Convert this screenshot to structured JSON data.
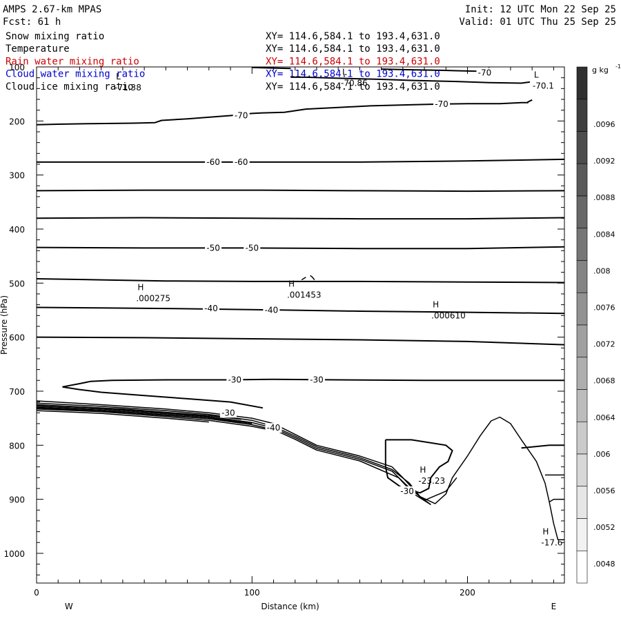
{
  "header": {
    "title": "AMPS 2.67-km MPAS",
    "fcst": "Fcst:   61 h",
    "init": "Init: 12 UTC Mon 22 Sep 25",
    "valid": "Valid: 01 UTC Thu 25 Sep 25"
  },
  "fields": [
    {
      "name": "Snow mixing ratio",
      "xy": "XY= 114.6,584.1 to 193.4,631.0",
      "color": "#000000"
    },
    {
      "name": "Temperature",
      "xy": "XY= 114.6,584.1 to 193.4,631.0",
      "color": "#000000"
    },
    {
      "name": "Rain water mixing ratio",
      "xy": "XY= 114.6,584.1 to 193.4,631.0",
      "color": "#cc0000"
    },
    {
      "name": "Cloud water mixing ratio",
      "xy": "XY= 114.6,584.1 to 193.4,631.0",
      "color": "#0000cc"
    },
    {
      "name": "Cloud ice mixing ratio",
      "xy": "XY= 114.6,584.1 to 193.4,631.0",
      "color": "#000000"
    }
  ],
  "chart_data": {
    "type": "contour",
    "xlabel": "Distance (km)",
    "ylabel": "Pressure (hPa)",
    "xlim": [
      0,
      245
    ],
    "ylim": [
      1055,
      100
    ],
    "x_ticks": [
      0,
      100,
      200
    ],
    "y_ticks": [
      200,
      300,
      400,
      500,
      600,
      700,
      800,
      900,
      1000
    ],
    "y_top_tick": "100",
    "x_left_label": "W",
    "x_right_label": "E",
    "colorbar": {
      "unit": "g kg",
      "unit_exp": "-1",
      "ticks": [
        ".0096",
        ".0092",
        ".0088",
        ".0084",
        ".008",
        ".0076",
        ".0072",
        ".0068",
        ".0064",
        ".006",
        ".0056",
        ".0052",
        ".0048"
      ],
      "colors": [
        "#303030",
        "#3e3e3e",
        "#4c4c4c",
        "#5a5a5a",
        "#686868",
        "#767676",
        "#848484",
        "#929292",
        "#a0a0a0",
        "#aeaeae",
        "#bcbcbc",
        "#cacaca",
        "#d8d8d8",
        "#e6e6e6",
        "#f2f2f2",
        "#ffffff"
      ]
    },
    "temperature_contours": [
      {
        "level": -70,
        "points": [
          [
            0,
            207
          ],
          [
            10,
            206
          ],
          [
            25,
            205
          ],
          [
            45,
            204
          ],
          [
            55,
            203
          ],
          [
            58,
            199
          ],
          [
            70,
            196
          ],
          [
            90,
            190
          ],
          [
            100,
            186
          ],
          [
            105,
            185
          ],
          [
            115,
            184
          ],
          [
            125,
            178
          ],
          [
            140,
            175
          ],
          [
            155,
            172
          ],
          [
            175,
            170
          ],
          [
            185,
            169
          ],
          [
            200,
            168
          ],
          [
            215,
            168
          ],
          [
            225,
            166
          ],
          [
            228,
            166
          ],
          [
            228,
            165
          ],
          [
            230,
            161
          ]
        ]
      },
      {
        "level": -70,
        "points": [
          [
            118,
            119
          ],
          [
            125,
            119
          ],
          [
            140,
            121
          ],
          [
            160,
            123
          ],
          [
            175,
            125
          ],
          [
            195,
            127
          ],
          [
            210,
            129
          ],
          [
            225,
            130
          ],
          [
            229,
            128
          ]
        ]
      },
      {
        "level": -70,
        "points": [
          [
            160,
            104
          ],
          [
            170,
            105
          ],
          [
            185,
            106
          ],
          [
            195,
            107
          ],
          [
            205,
            108
          ]
        ]
      },
      {
        "level": -70,
        "points": [
          [
            100,
            101
          ],
          [
            110,
            102
          ],
          [
            118,
            103
          ]
        ]
      },
      {
        "level": -60,
        "points": [
          [
            0,
            276
          ],
          [
            50,
            276
          ],
          [
            100,
            276
          ],
          [
            150,
            276
          ],
          [
            200,
            274
          ],
          [
            245,
            271
          ]
        ]
      },
      {
        "level": -60,
        "points": [
          [
            0,
            329
          ],
          [
            50,
            328
          ],
          [
            100,
            328
          ],
          [
            150,
            329
          ],
          [
            200,
            330
          ],
          [
            245,
            329
          ]
        ]
      },
      {
        "level": -60,
        "points": [
          [
            0,
            380
          ],
          [
            50,
            379
          ],
          [
            100,
            380
          ],
          [
            150,
            381
          ],
          [
            200,
            381
          ],
          [
            245,
            379
          ]
        ]
      },
      {
        "level": -50,
        "points": [
          [
            0,
            434
          ],
          [
            50,
            435
          ],
          [
            100,
            435
          ],
          [
            150,
            436
          ],
          [
            200,
            436
          ],
          [
            245,
            433
          ]
        ]
      },
      {
        "level": -50,
        "points": [
          [
            0,
            492
          ],
          [
            30,
            494
          ],
          [
            60,
            496
          ],
          [
            100,
            497
          ],
          [
            150,
            497
          ],
          [
            200,
            498
          ],
          [
            245,
            499
          ]
        ]
      },
      {
        "level": -40,
        "points": [
          [
            0,
            545
          ],
          [
            30,
            546
          ],
          [
            60,
            547
          ],
          [
            100,
            549
          ],
          [
            150,
            552
          ],
          [
            200,
            554
          ],
          [
            245,
            556
          ]
        ]
      },
      {
        "level": -40,
        "points": [
          [
            0,
            600
          ],
          [
            50,
            601
          ],
          [
            100,
            603
          ],
          [
            150,
            605
          ],
          [
            200,
            608
          ],
          [
            245,
            614
          ]
        ]
      },
      {
        "level": -30,
        "points": [
          [
            12,
            692
          ],
          [
            20,
            686
          ],
          [
            25,
            682
          ],
          [
            35,
            680
          ],
          [
            60,
            679
          ],
          [
            90,
            679
          ],
          [
            110,
            678
          ],
          [
            140,
            679
          ],
          [
            180,
            680
          ],
          [
            245,
            680
          ]
        ]
      },
      {
        "level": -30,
        "points": [
          [
            12,
            692
          ],
          [
            20,
            697
          ],
          [
            30,
            702
          ],
          [
            50,
            708
          ],
          [
            70,
            714
          ],
          [
            90,
            720
          ],
          [
            105,
            731
          ]
        ]
      },
      {
        "level": -30,
        "points": [
          [
            225,
            805
          ],
          [
            238,
            800
          ],
          [
            245,
            800
          ]
        ]
      }
    ],
    "small_contours": [
      [
        [
          123,
          494
        ],
        [
          125,
          489
        ]
      ],
      [
        [
          127,
          486
        ],
        [
          128,
          489
        ],
        [
          129,
          494
        ]
      ]
    ],
    "terrain_lines": [
      [
        [
          0,
          718
        ],
        [
          30,
          725
        ],
        [
          60,
          733
        ],
        [
          80,
          740
        ],
        [
          100,
          750
        ],
        [
          110,
          760
        ],
        [
          120,
          780
        ],
        [
          130,
          800
        ],
        [
          150,
          820
        ],
        [
          165,
          840
        ],
        [
          170,
          860
        ],
        [
          178,
          895
        ],
        [
          185,
          908
        ],
        [
          190,
          890
        ],
        [
          193,
          860
        ],
        [
          200,
          820
        ],
        [
          206,
          782
        ],
        [
          211,
          755
        ],
        [
          215,
          748
        ],
        [
          220,
          760
        ],
        [
          225,
          790
        ],
        [
          232,
          830
        ],
        [
          236,
          870
        ],
        [
          238,
          905
        ],
        [
          240,
          945
        ],
        [
          242,
          975
        ],
        [
          245,
          975
        ]
      ],
      [
        [
          0,
          722
        ],
        [
          30,
          728
        ],
        [
          60,
          736
        ],
        [
          80,
          743
        ],
        [
          100,
          754
        ],
        [
          110,
          765
        ],
        [
          120,
          783
        ],
        [
          130,
          803
        ],
        [
          150,
          823
        ],
        [
          165,
          845
        ],
        [
          173,
          870
        ],
        [
          178,
          895
        ],
        [
          183,
          910
        ]
      ],
      [
        [
          0,
          726
        ],
        [
          30,
          731
        ],
        [
          60,
          740
        ],
        [
          80,
          747
        ],
        [
          100,
          758
        ],
        [
          110,
          768
        ],
        [
          120,
          786
        ],
        [
          130,
          806
        ],
        [
          150,
          826
        ],
        [
          165,
          848
        ],
        [
          172,
          875
        ],
        [
          180,
          902
        ],
        [
          190,
          885
        ],
        [
          195,
          860
        ]
      ],
      [
        [
          0,
          730
        ],
        [
          30,
          735
        ],
        [
          60,
          744
        ],
        [
          80,
          751
        ],
        [
          100,
          762
        ],
        [
          110,
          771
        ],
        [
          120,
          789
        ],
        [
          130,
          809
        ],
        [
          150,
          829
        ],
        [
          168,
          860
        ],
        [
          175,
          890
        ],
        [
          183,
          910
        ]
      ],
      [
        [
          0,
          733
        ],
        [
          30,
          738
        ],
        [
          60,
          747
        ],
        [
          80,
          754
        ],
        [
          100,
          765
        ],
        [
          110,
          773
        ]
      ],
      [
        [
          0,
          736
        ],
        [
          30,
          741
        ],
        [
          60,
          750
        ],
        [
          80,
          757
        ]
      ],
      [
        [
          0,
          728
        ],
        [
          30,
          733
        ],
        [
          60,
          742
        ],
        [
          80,
          749
        ],
        [
          100,
          760
        ]
      ],
      [
        [
          0,
          725
        ],
        [
          40,
          733
        ],
        [
          80,
          745
        ],
        [
          95,
          752
        ]
      ],
      [
        [
          0,
          731
        ],
        [
          40,
          739
        ],
        [
          80,
          751
        ],
        [
          95,
          758
        ]
      ],
      [
        [
          236,
          855
        ],
        [
          240,
          855
        ],
        [
          245,
          855
        ]
      ],
      [
        [
          238,
          905
        ],
        [
          240,
          900
        ],
        [
          245,
          900
        ]
      ]
    ],
    "closed_contour": [
      [
        162,
        790
      ],
      [
        174,
        790
      ],
      [
        190,
        800
      ],
      [
        193,
        810
      ],
      [
        191,
        830
      ],
      [
        187,
        840
      ],
      [
        183,
        860
      ],
      [
        182,
        880
      ],
      [
        178,
        888
      ],
      [
        170,
        880
      ],
      [
        163,
        860
      ],
      [
        162,
        840
      ],
      [
        162,
        815
      ],
      [
        162,
        800
      ],
      [
        162,
        790
      ]
    ],
    "annotations": [
      {
        "label": "H",
        "value": ".000275",
        "x": 52,
        "y": 518
      },
      {
        "label": "H",
        "value": ".001453",
        "x": 122,
        "y": 512
      },
      {
        "label": "H",
        "value": ".000610",
        "x": 189,
        "y": 550
      },
      {
        "label": "H",
        "value": "-23.23",
        "x": 183,
        "y": 856
      },
      {
        "label": "H",
        "value": "-17.6",
        "x": 240,
        "y": 970
      },
      {
        "label": "L",
        "value": "-71.38",
        "x": 42,
        "y": 128
      },
      {
        "label": "L",
        "value": "-70.86",
        "x": 147,
        "y": 120
      },
      {
        "label": "L",
        "value": "-70.1",
        "x": 236,
        "y": 125
      }
    ],
    "contour_labels": [
      {
        "text": "-70",
        "x": 95,
        "y": 190
      },
      {
        "text": "-70",
        "x": 188,
        "y": 169
      },
      {
        "text": "-70",
        "x": 208,
        "y": 111
      },
      {
        "text": "-60",
        "x": 82,
        "y": 276
      },
      {
        "text": "-60",
        "x": 95,
        "y": 276
      },
      {
        "text": "-50",
        "x": 82,
        "y": 435
      },
      {
        "text": "-50",
        "x": 100,
        "y": 435
      },
      {
        "text": "-40",
        "x": 81,
        "y": 547
      },
      {
        "text": "-40",
        "x": 109,
        "y": 550
      },
      {
        "text": "-30",
        "x": 92,
        "y": 679
      },
      {
        "text": "-30",
        "x": 130,
        "y": 679
      },
      {
        "text": "-30",
        "x": 89,
        "y": 740
      },
      {
        "text": "-40",
        "x": 110,
        "y": 768
      },
      {
        "text": "-30",
        "x": 172,
        "y": 885
      }
    ]
  }
}
